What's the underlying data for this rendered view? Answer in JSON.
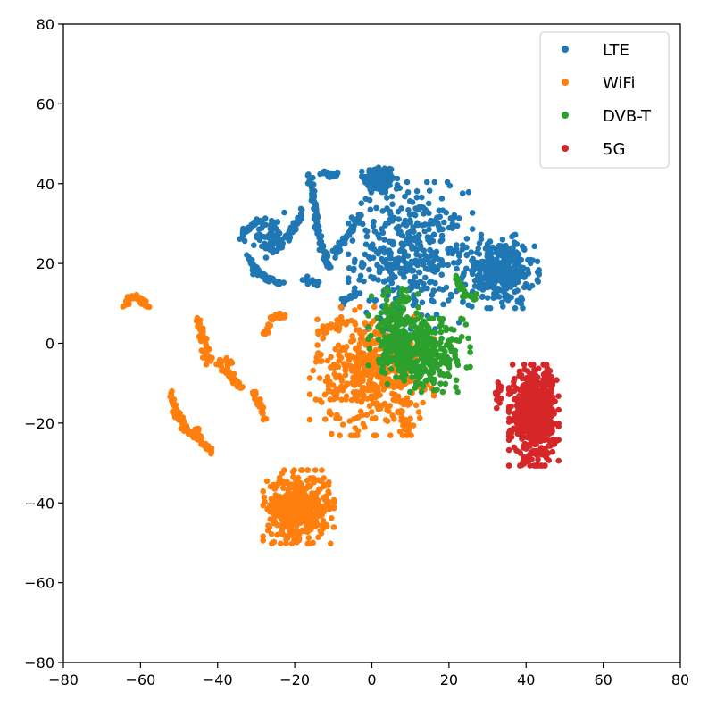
{
  "chart_data": {
    "type": "scatter",
    "title": "",
    "xlabel": "",
    "ylabel": "",
    "xlim": [
      -80,
      80
    ],
    "ylim": [
      -80,
      80
    ],
    "xticks": [
      -80,
      -60,
      -40,
      -20,
      0,
      20,
      40,
      60,
      80
    ],
    "yticks": [
      -80,
      -60,
      -40,
      -20,
      0,
      20,
      40,
      60,
      80
    ],
    "xtick_labels": [
      "−80",
      "−60",
      "−40",
      "−20",
      "0",
      "20",
      "40",
      "60",
      "80"
    ],
    "ytick_labels": [
      "−80",
      "−60",
      "−40",
      "−20",
      "0",
      "20",
      "40",
      "60",
      "80"
    ],
    "grid": false,
    "legend": {
      "placement": "top-right"
    },
    "series": [
      {
        "name": "LTE",
        "color": "#1f77b4",
        "clusters": [
          {
            "center": [
              2,
              41
            ],
            "spread": [
              2,
              1.8
            ],
            "count": 160
          },
          {
            "center": [
              10,
              22
            ],
            "spread": [
              7,
              8
            ],
            "count": 400
          },
          {
            "center": [
              33,
              18
            ],
            "spread": [
              4.5,
              4
            ],
            "count": 320
          },
          {
            "center": [
              -26,
              27
            ],
            "spread": [
              2,
              2.5
            ],
            "count": 60
          }
        ],
        "curves": [
          [
            [
              -32,
              22
            ],
            [
              -30,
              18
            ],
            [
              -27,
              16
            ],
            [
              -23,
              15
            ]
          ],
          [
            [
              -34,
              26
            ],
            [
              -31,
              30
            ],
            [
              -28,
              31
            ]
          ],
          [
            [
              -16,
              42
            ],
            [
              -15,
              35
            ],
            [
              -14,
              29
            ],
            [
              -13,
              25
            ],
            [
              -11,
              19
            ]
          ],
          [
            [
              -10,
              22
            ],
            [
              -6,
              27
            ],
            [
              -3,
              32
            ]
          ],
          [
            [
              -13,
              43
            ],
            [
              -11,
              42
            ],
            [
              -9,
              43
            ]
          ],
          [
            [
              -24,
              24
            ],
            [
              -20,
              29
            ],
            [
              -18,
              33
            ]
          ],
          [
            [
              -18,
              16
            ],
            [
              -14,
              15
            ]
          ],
          [
            [
              -8,
              10
            ],
            [
              -4,
              13
            ]
          ]
        ]
      },
      {
        "name": "WiFi",
        "color": "#ff7f0e",
        "clusters": [
          {
            "center": [
              -19,
              -41
            ],
            "spread": [
              4,
              4
            ],
            "count": 480
          },
          {
            "center": [
              0,
              -7
            ],
            "spread": [
              7,
              7
            ],
            "count": 480
          }
        ],
        "curves": [
          [
            [
              -64,
              9
            ],
            [
              -62,
              12
            ],
            [
              -60,
              11
            ],
            [
              -58,
              9
            ]
          ],
          [
            [
              -52,
              -12
            ],
            [
              -51,
              -17
            ],
            [
              -48,
              -22
            ],
            [
              -44,
              -25
            ],
            [
              -41,
              -27
            ]
          ],
          [
            [
              -45,
              6
            ],
            [
              -44,
              2
            ],
            [
              -43,
              -2
            ],
            [
              -42,
              -5
            ]
          ],
          [
            [
              -40,
              -4
            ],
            [
              -37,
              -8
            ],
            [
              -34,
              -11
            ]
          ],
          [
            [
              -38,
              -5
            ],
            [
              -36,
              -5
            ]
          ],
          [
            [
              -31,
              -12
            ],
            [
              -29,
              -16
            ],
            [
              -28,
              -19
            ]
          ],
          [
            [
              -28,
              2
            ],
            [
              -26,
              6
            ],
            [
              -22,
              7
            ]
          ],
          [
            [
              -46,
              -21
            ],
            [
              -44,
              -24
            ]
          ],
          [
            [
              -14,
              3
            ],
            [
              -8,
              5
            ]
          ],
          [
            [
              7,
              -17
            ],
            [
              9,
              -20
            ],
            [
              10,
              -23
            ]
          ]
        ]
      },
      {
        "name": "DVB-T",
        "color": "#2ca02c",
        "clusters": [
          {
            "center": [
              6,
              3
            ],
            "spread": [
              3,
              5
            ],
            "count": 200
          },
          {
            "center": [
              14,
              -3
            ],
            "spread": [
              5,
              4
            ],
            "count": 300
          }
        ],
        "curves": [
          [
            [
              22,
              16
            ],
            [
              24,
              12
            ],
            [
              27,
              11
            ]
          ]
        ]
      },
      {
        "name": "5G",
        "color": "#d62728",
        "clusters": [
          {
            "center": [
              42,
              -18
            ],
            "spread": [
              2.8,
              5.5
            ],
            "count": 620
          }
        ],
        "curves": [
          [
            [
              33,
              -10
            ],
            [
              33,
              -15
            ]
          ],
          [
            [
              46,
              -7
            ],
            [
              46,
              -12
            ]
          ]
        ]
      }
    ]
  }
}
